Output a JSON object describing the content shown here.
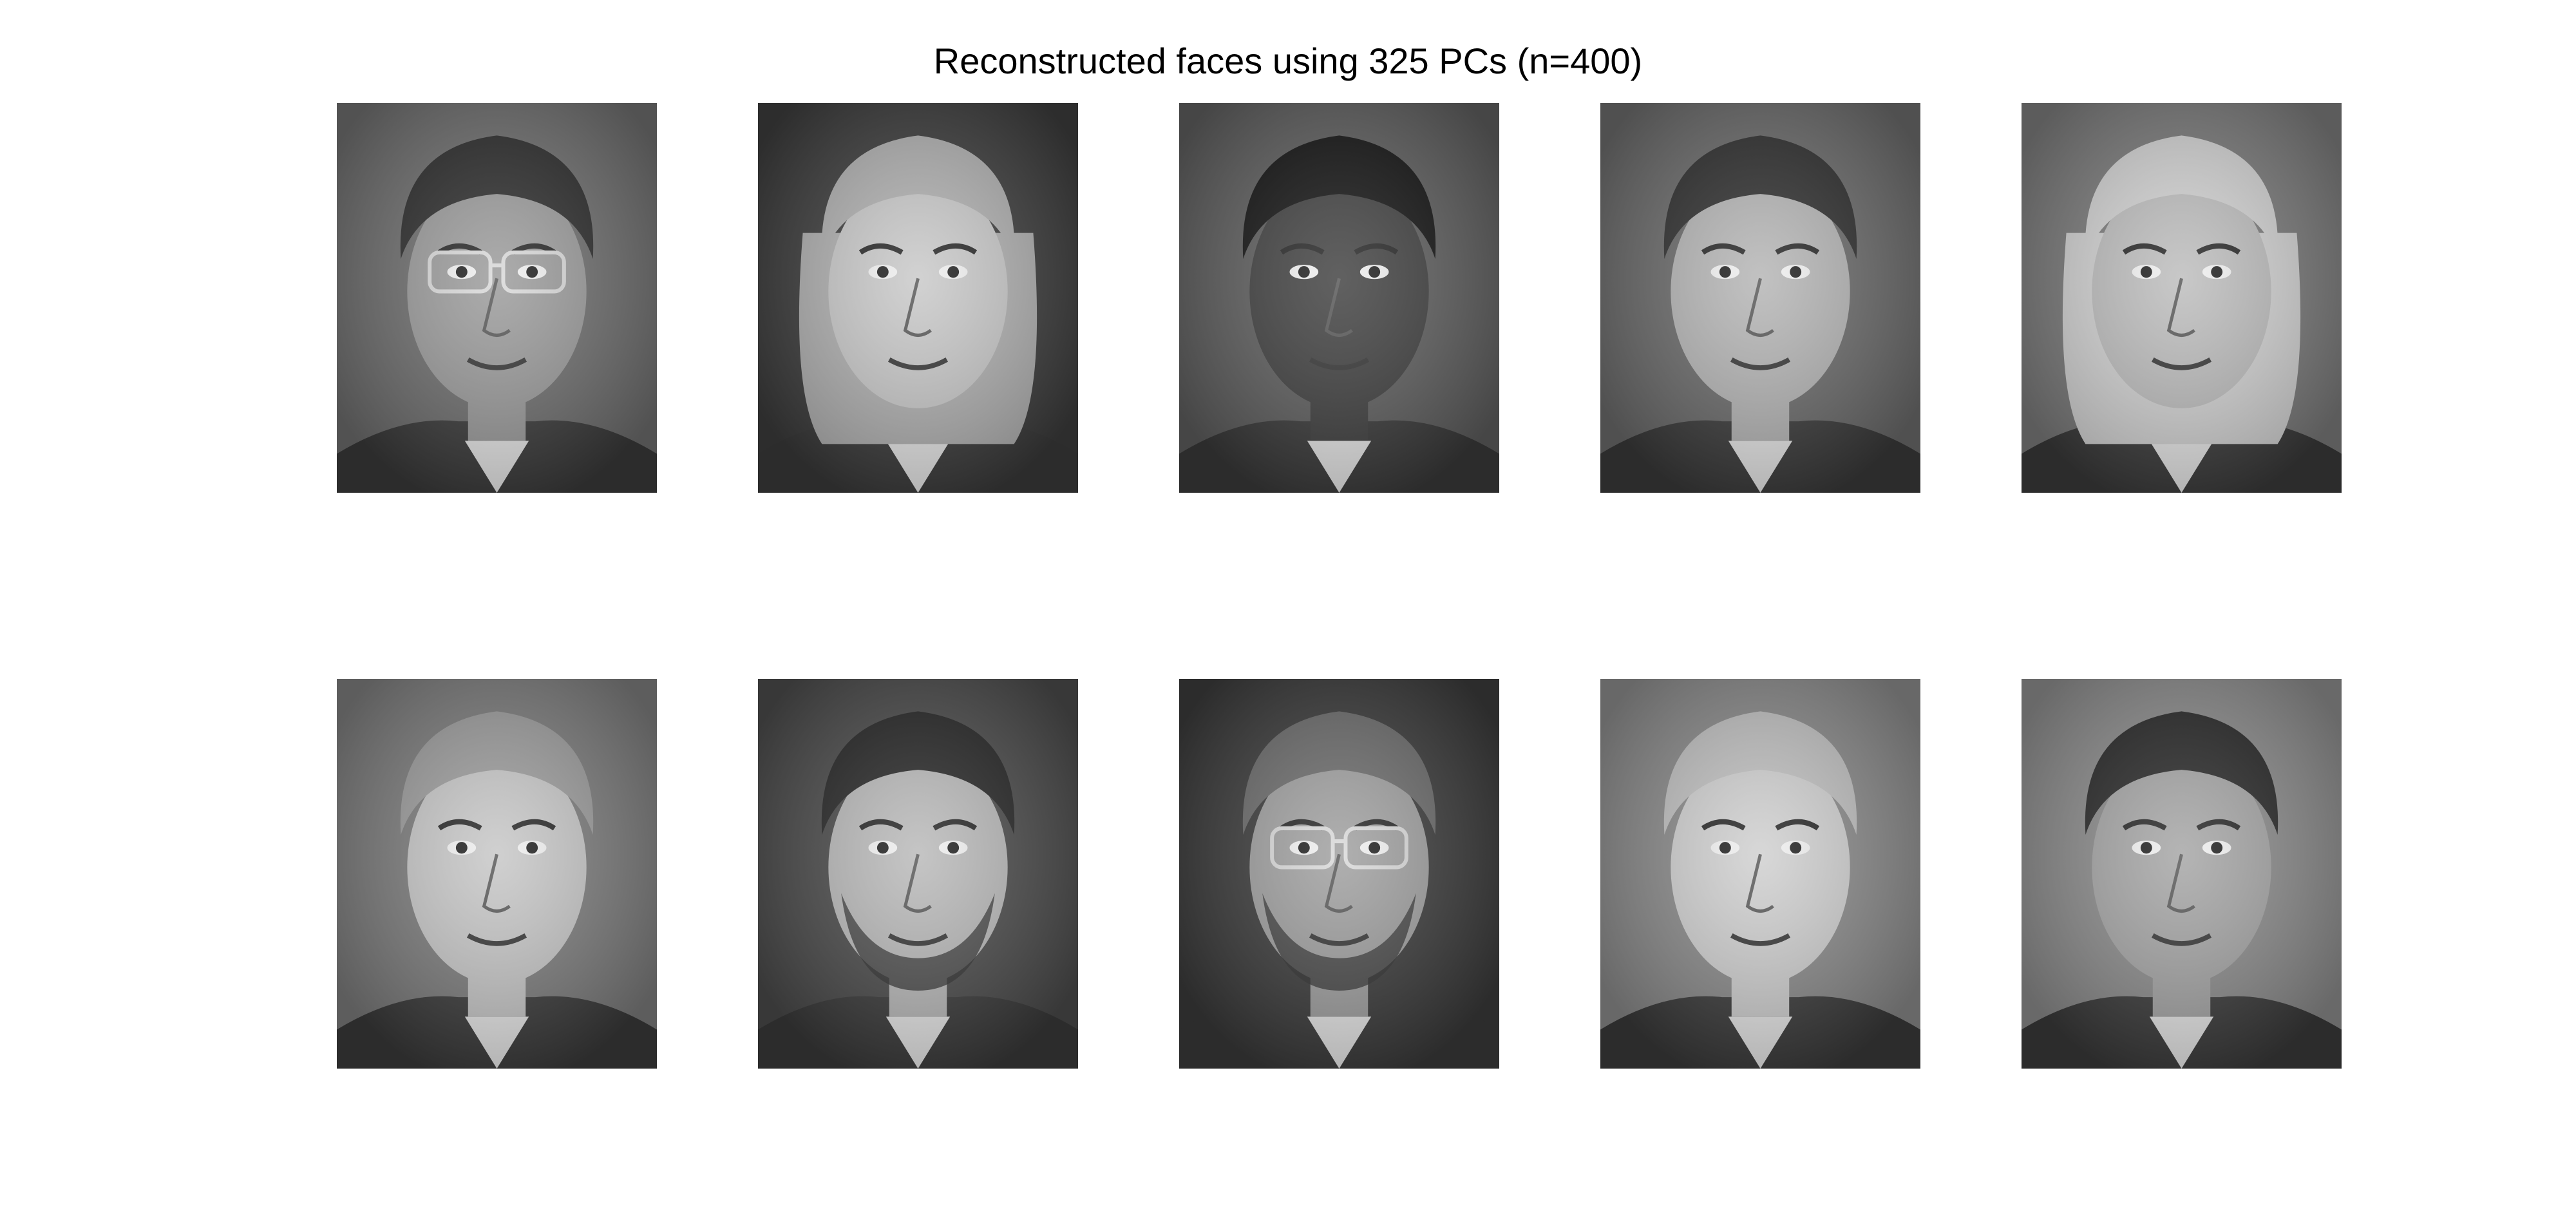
{
  "figure": {
    "title": "Reconstructed faces using 325 PCs (n=400)"
  },
  "faces": [
    {
      "row": 0,
      "col": 0,
      "skin": "#9a9a9a",
      "hair": "#2a2a2a",
      "bg": "#6e6e6e",
      "glasses": true,
      "beard": false,
      "hair_style": "short-dark"
    },
    {
      "row": 0,
      "col": 1,
      "skin": "#c8c8c8",
      "hair": "#b0b0b0",
      "bg": "#3c3c3c",
      "glasses": false,
      "beard": false,
      "hair_style": "long-light"
    },
    {
      "row": 0,
      "col": 2,
      "skin": "#3e3e3e",
      "hair": "#111111",
      "bg": "#5e5e5e",
      "glasses": false,
      "beard": false,
      "hair_style": "short-very-dark"
    },
    {
      "row": 0,
      "col": 3,
      "skin": "#b4b4b4",
      "hair": "#2c2c2c",
      "bg": "#6a6a6a",
      "glasses": false,
      "beard": false,
      "hair_style": "spiky-dark"
    },
    {
      "row": 0,
      "col": 4,
      "skin": "#bcbcbc",
      "hair": "#d2d2d2",
      "bg": "#7a7a7a",
      "glasses": false,
      "beard": false,
      "hair_style": "blonde"
    },
    {
      "row": 1,
      "col": 0,
      "skin": "#c6c6c6",
      "hair": "#9c9c9c",
      "bg": "#7c7c7c",
      "glasses": false,
      "beard": false,
      "hair_style": "short-light"
    },
    {
      "row": 1,
      "col": 1,
      "skin": "#b8b8b8",
      "hair": "#242424",
      "bg": "#4a4a4a",
      "glasses": false,
      "beard": true,
      "hair_style": "short-dark"
    },
    {
      "row": 1,
      "col": 2,
      "skin": "#9e9e9e",
      "hair": "#6a6a6a",
      "bg": "#3a3a3a",
      "glasses": true,
      "beard": true,
      "hair_style": "short-grey"
    },
    {
      "row": 1,
      "col": 3,
      "skin": "#cfcfcf",
      "hair": "#c0c0c0",
      "bg": "#8a8a8a",
      "glasses": false,
      "beard": false,
      "hair_style": "curly-light"
    },
    {
      "row": 1,
      "col": 4,
      "skin": "#a4a4a4",
      "hair": "#262626",
      "bg": "#8c8c8c",
      "glasses": false,
      "beard": false,
      "hair_style": "short-dark"
    }
  ]
}
